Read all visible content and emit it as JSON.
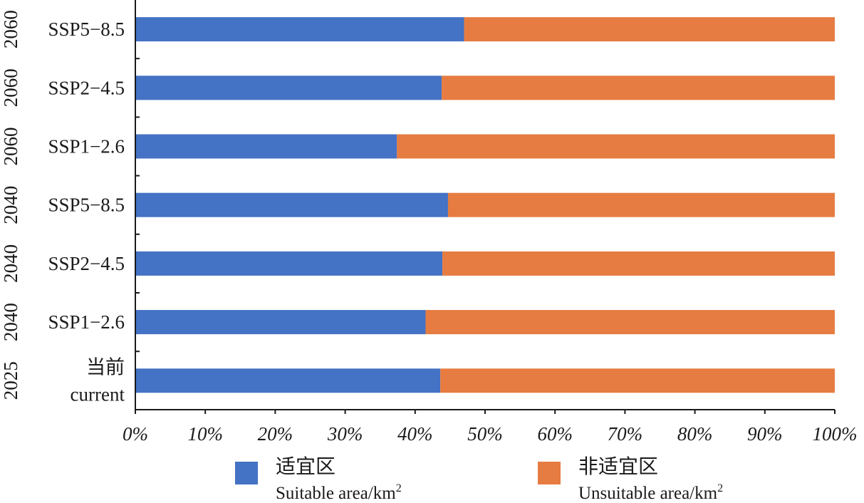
{
  "chart_data": {
    "type": "bar",
    "orientation": "horizontal",
    "stacked": true,
    "categories": [
      {
        "year": "2060",
        "label": "SSP5−8.5"
      },
      {
        "year": "2060",
        "label": "SSP2−4.5"
      },
      {
        "year": "2060",
        "label": "SSP1−2.6"
      },
      {
        "year": "2040",
        "label": "SSP5−8.5"
      },
      {
        "year": "2040",
        "label": "SSP2−4.5"
      },
      {
        "year": "2040",
        "label": "SSP1−2.6"
      },
      {
        "year": "2025",
        "label": "当前",
        "label2": "current"
      }
    ],
    "series": [
      {
        "name": "适宜区",
        "name_en": "Suitable area/km",
        "color": "#4472C4",
        "values": [
          47.0,
          43.8,
          37.4,
          44.7,
          43.9,
          41.5,
          43.6
        ]
      },
      {
        "name": "非适宜区",
        "name_en": "Unsuitable area/km",
        "color": "#E67C41",
        "values": [
          53.0,
          56.2,
          62.6,
          55.3,
          56.1,
          58.5,
          56.4
        ]
      }
    ],
    "x_ticks": [
      "0%",
      "10%",
      "20%",
      "30%",
      "40%",
      "50%",
      "60%",
      "70%",
      "80%",
      "90%",
      "100%"
    ],
    "xlim": [
      0,
      100
    ],
    "legend_position": "bottom",
    "grid": false
  }
}
